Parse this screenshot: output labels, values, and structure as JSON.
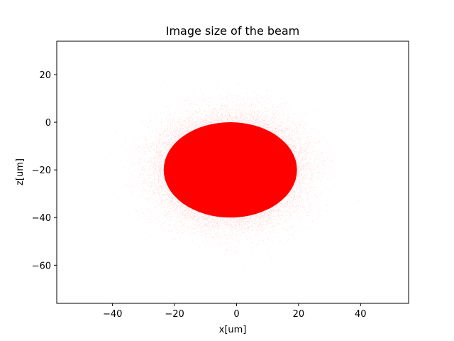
{
  "chart_data": {
    "type": "scatter",
    "title": "Image size of the beam",
    "xlabel": "x[um]",
    "ylabel": "z[um]",
    "xlim": [
      -58,
      55.5
    ],
    "ylim": [
      -76,
      34
    ],
    "xticks": [
      -40,
      -20,
      0,
      20,
      40
    ],
    "yticks": [
      20,
      0,
      -20,
      -40,
      -60
    ],
    "xtick_labels": [
      "−40",
      "−20",
      "0",
      "20",
      "40"
    ],
    "ytick_labels": [
      "20",
      "0",
      "−20",
      "−40",
      "−60"
    ],
    "grid": false,
    "series": [
      {
        "color": "#ff0000",
        "distribution": "gaussian",
        "center": [
          -2,
          -20
        ],
        "sigma": [
          10,
          10
        ],
        "point_count": 60000
      }
    ]
  }
}
